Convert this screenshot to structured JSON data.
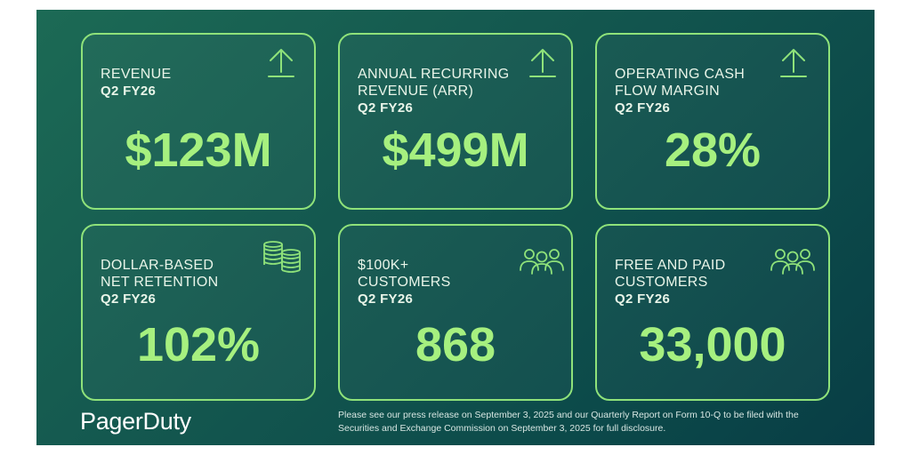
{
  "brand": {
    "logo_text": "PagerDuty"
  },
  "cards": [
    {
      "title": "REVENUE",
      "period": "Q2 FY26",
      "value": "$123M",
      "icon": "arrow-up-icon"
    },
    {
      "title": "ANNUAL RECURRING\nREVENUE (ARR)",
      "period": "Q2 FY26",
      "value": "$499M",
      "icon": "arrow-up-icon"
    },
    {
      "title": "OPERATING CASH\nFLOW MARGIN",
      "period": "Q2 FY26",
      "value": "28%",
      "icon": "arrow-up-icon"
    },
    {
      "title": "DOLLAR-BASED\nNET RETENTION",
      "period": "Q2 FY26",
      "value": "102%",
      "icon": "coin-stack-icon"
    },
    {
      "title": "$100K+\nCUSTOMERS",
      "period": "Q2 FY26",
      "value": "868",
      "icon": "people-group-icon"
    },
    {
      "title": "FREE AND PAID\nCUSTOMERS",
      "period": "Q2 FY26",
      "value": "33,000",
      "icon": "people-group-icon"
    }
  ],
  "disclaimer": "Please see our press release on September 3, 2025 and our Quarterly Report on Form 10-Q to be filed with the Securities and Exchange Commission on September 3, 2025 for full disclosure.",
  "colors": {
    "accent": "#a6f07f",
    "border": "#8fe27a",
    "background_start": "#1c6a55",
    "background_end": "#083d45"
  }
}
